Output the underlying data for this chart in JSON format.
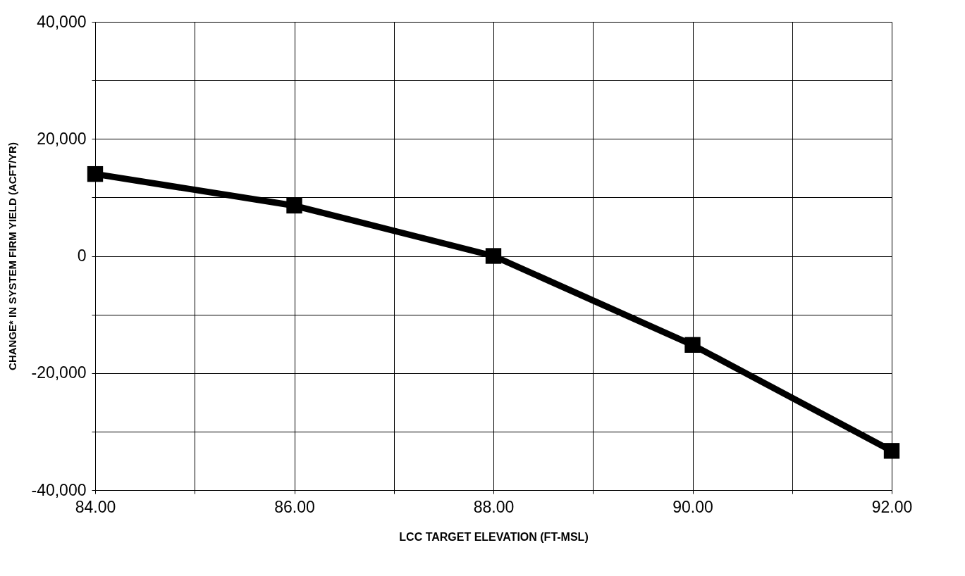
{
  "chart_data": {
    "type": "line",
    "xlabel": "LCC TARGET ELEVATION (FT-MSL)",
    "ylabel": "CHANGE* IN SYSTEM FIRM YIELD (ACFT/YR)",
    "x": [
      84,
      86,
      88,
      90,
      92
    ],
    "series": [
      {
        "color": "#000000",
        "values": [
          14000,
          8600,
          0,
          -15200,
          -33300
        ]
      }
    ],
    "xlim": [
      84,
      92
    ],
    "ylim": [
      -40000,
      40000
    ],
    "xticks": [
      {
        "value": 84,
        "label": "84.00"
      },
      {
        "value": 85,
        "label": null
      },
      {
        "value": 86,
        "label": "86.00"
      },
      {
        "value": 87,
        "label": null
      },
      {
        "value": 88,
        "label": "88.00"
      },
      {
        "value": 89,
        "label": null
      },
      {
        "value": 90,
        "label": "90.00"
      },
      {
        "value": 91,
        "label": null
      },
      {
        "value": 92,
        "label": "92.00"
      }
    ],
    "yticks": [
      {
        "value": -40000,
        "label": "-40,000"
      },
      {
        "value": -30000,
        "label": null
      },
      {
        "value": -20000,
        "label": "-20,000"
      },
      {
        "value": -10000,
        "label": null
      },
      {
        "value": 0,
        "label": "0"
      },
      {
        "value": 10000,
        "label": null
      },
      {
        "value": 20000,
        "label": "20,000"
      },
      {
        "value": 30000,
        "label": null
      },
      {
        "value": 40000,
        "label": "40,000"
      }
    ],
    "grid": true,
    "marker": "square",
    "line_style": "solid"
  }
}
